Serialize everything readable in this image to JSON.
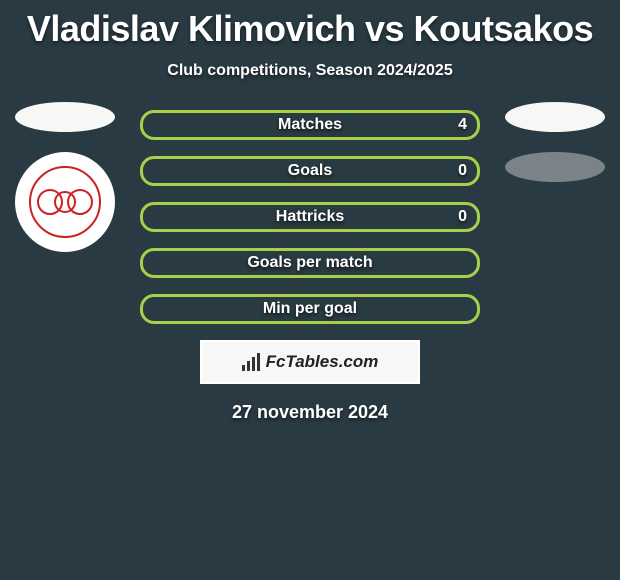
{
  "title": "Vladislav Klimovich vs Koutsakos",
  "subtitle": "Club competitions, Season 2024/2025",
  "stats": [
    {
      "label": "Matches",
      "value": "4"
    },
    {
      "label": "Goals",
      "value": "0"
    },
    {
      "label": "Hattricks",
      "value": "0"
    },
    {
      "label": "Goals per match",
      "value": ""
    },
    {
      "label": "Min per goal",
      "value": ""
    }
  ],
  "brand": "FcTables.com",
  "date": "27 november 2024",
  "colors": {
    "background": "#2a3a42",
    "accent": "#a4d14a",
    "white": "#f7f7f5",
    "badge_red": "#c22"
  }
}
